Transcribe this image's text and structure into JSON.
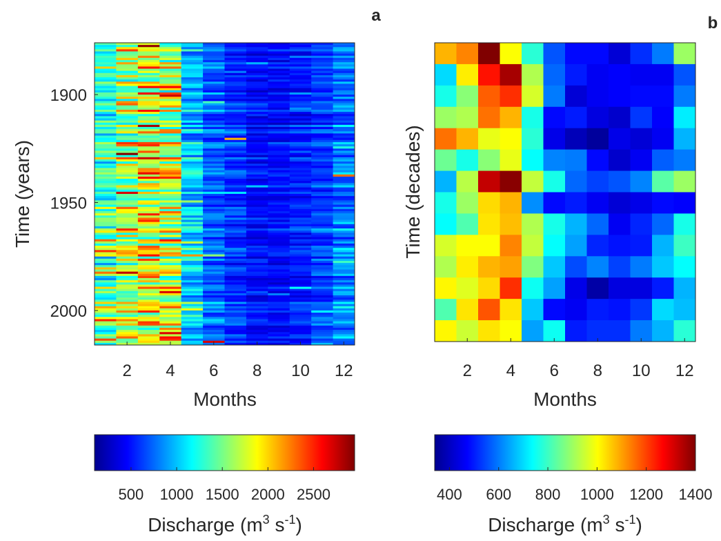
{
  "panels": [
    {
      "letter": "a",
      "xlabel": "Months",
      "ylabel": "Time (years)",
      "colorbar_label": "Discharge (m",
      "colorbar_sup1": "3",
      "colorbar_mid": " s",
      "colorbar_sup2": "-1",
      "colorbar_end": ")"
    },
    {
      "letter": "b",
      "xlabel": "Months",
      "ylabel": "Time (decades)",
      "colorbar_label": "Discharge (m",
      "colorbar_sup1": "3",
      "colorbar_mid": " s",
      "colorbar_sup2": "-1",
      "colorbar_end": ")"
    }
  ],
  "chart_data": [
    {
      "type": "heatmap",
      "panel": "a",
      "xlabel": "Months",
      "ylabel": "Time (years)",
      "x_ticks": [
        2,
        4,
        6,
        8,
        10,
        12
      ],
      "x_range": [
        0.5,
        12.5
      ],
      "y_ticks": [
        1900,
        1950,
        2000
      ],
      "y_range": [
        1876,
        2016
      ],
      "y_reversed": true,
      "colormap": "jet",
      "color_range": [
        100,
        2950
      ],
      "colorbar_ticks": [
        500,
        1000,
        1500,
        2000,
        2500
      ],
      "colorbar_label": "Discharge (m3 s-1)",
      "monthly_mean_discharge": [
        1300,
        1550,
        1700,
        1600,
        950,
        700,
        550,
        450,
        450,
        500,
        600,
        750
      ],
      "notable_high_cells": [
        {
          "year": 1877,
          "month": 3,
          "value": 2900
        },
        {
          "year": 1896,
          "month": 4,
          "value": 2600
        },
        {
          "year": 1920,
          "month": 7,
          "value": 2100
        },
        {
          "year": 1938,
          "month": 3,
          "value": 2600
        },
        {
          "year": 1938,
          "month": 4,
          "value": 2500
        },
        {
          "year": 1937,
          "month": 12,
          "value": 2300
        },
        {
          "year": 1963,
          "month": 4,
          "value": 2300
        },
        {
          "year": 1967,
          "month": 1,
          "value": 2300
        },
        {
          "year": 1991,
          "month": 4,
          "value": 2700
        },
        {
          "year": 2004,
          "month": 1,
          "value": 2500
        },
        {
          "year": 2006,
          "month": 4,
          "value": 2300
        },
        {
          "year": 2014,
          "month": 6,
          "value": 2700
        },
        {
          "year": 2013,
          "month": 1,
          "value": 2400
        }
      ]
    },
    {
      "type": "heatmap",
      "panel": "b",
      "xlabel": "Months",
      "ylabel": "Time (decades)",
      "x_ticks": [
        2,
        4,
        6,
        8,
        10,
        12
      ],
      "x_range": [
        0.5,
        12.5
      ],
      "colormap": "jet",
      "color_range": [
        340,
        1400
      ],
      "colorbar_ticks": [
        400,
        600,
        800,
        1000,
        1200,
        1400
      ],
      "colorbar_label": "Discharge (m3 s-1)",
      "rows": [
        [
          1080,
          1130,
          1400,
          1000,
          780,
          560,
          480,
          480,
          430,
          520,
          600,
          900
        ],
        [
          700,
          1020,
          1250,
          1360,
          920,
          580,
          500,
          460,
          470,
          460,
          460,
          560
        ],
        [
          760,
          880,
          1170,
          1220,
          960,
          600,
          430,
          460,
          470,
          480,
          480,
          600
        ],
        [
          900,
          920,
          1150,
          1080,
          760,
          480,
          500,
          440,
          420,
          530,
          470,
          720
        ],
        [
          1150,
          1080,
          980,
          1000,
          780,
          450,
          400,
          370,
          450,
          430,
          460,
          660
        ],
        [
          850,
          760,
          880,
          980,
          740,
          610,
          600,
          480,
          420,
          460,
          570,
          600
        ],
        [
          660,
          930,
          1330,
          1390,
          940,
          760,
          580,
          540,
          560,
          610,
          830,
          900
        ],
        [
          760,
          900,
          1040,
          1080,
          620,
          480,
          500,
          460,
          430,
          450,
          480,
          470
        ],
        [
          740,
          820,
          1030,
          1070,
          920,
          760,
          660,
          580,
          460,
          510,
          580,
          760
        ],
        [
          960,
          1000,
          1000,
          1130,
          940,
          740,
          640,
          510,
          490,
          500,
          660,
          800
        ],
        [
          920,
          1020,
          1080,
          1100,
          870,
          680,
          550,
          610,
          540,
          600,
          680,
          740
        ],
        [
          1010,
          970,
          1040,
          1220,
          750,
          640,
          450,
          380,
          440,
          440,
          500,
          660
        ],
        [
          820,
          1030,
          1180,
          1030,
          680,
          480,
          460,
          500,
          490,
          530,
          700,
          670
        ],
        [
          1010,
          950,
          1030,
          1000,
          640,
          750,
          500,
          520,
          520,
          600,
          660,
          780
        ]
      ]
    }
  ]
}
